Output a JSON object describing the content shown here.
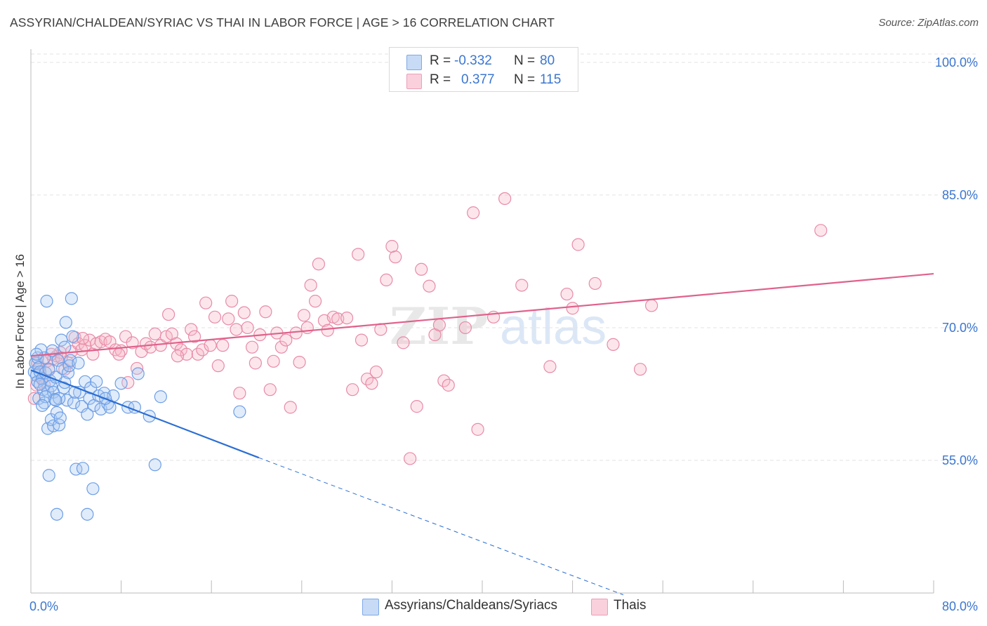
{
  "header": {
    "title": "ASSYRIAN/CHALDEAN/SYRIAC VS THAI IN LABOR FORCE | AGE > 16 CORRELATION CHART",
    "source": "Source: ZipAtlas.com"
  },
  "legend_top": {
    "rows": [
      {
        "r_label": "R =",
        "r_value": "-0.332",
        "n_label": "N =",
        "n_value": "80",
        "color": "#a9c8f0"
      },
      {
        "r_label": "R =",
        "r_value": "0.377",
        "n_label": "N =",
        "n_value": "115",
        "color": "#f5b6c8"
      }
    ]
  },
  "legend_bottom": {
    "items": [
      {
        "label": "Assyrians/Chaldeans/Syriacs",
        "color": "#a9c8f0"
      },
      {
        "label": "Thais",
        "color": "#f5b6c8"
      }
    ]
  },
  "watermark": {
    "part1": "ZIP",
    "part2": "atlas"
  },
  "chart_data": {
    "type": "scatter",
    "title": "ASSYRIAN/CHALDEAN/SYRIAC VS THAI IN LABOR FORCE | AGE > 16 CORRELATION CHART",
    "ylabel": "In Labor Force | Age > 16",
    "xlabel": "",
    "xlim": [
      0,
      80
    ],
    "ylim": [
      40,
      101.5
    ],
    "x_tick_labels": [
      "0.0%",
      "80.0%"
    ],
    "y_ticks": [
      55,
      70,
      85,
      100
    ],
    "y_tick_labels": [
      "55.0%",
      "70.0%",
      "85.0%",
      "100.0%"
    ],
    "grid": true,
    "legend_position": "bottom",
    "series": [
      {
        "name": "Assyrians/Chaldeans/Syriacs",
        "color": "#6d9ee6",
        "fill": "#a9c8f0",
        "r": -0.332,
        "n": 80,
        "trend": {
          "x0": 0,
          "y0": 65.2,
          "x1": 20.2,
          "y1": 55.3,
          "dashed_to_x": 52.5,
          "dashed_to_y": 39.8
        },
        "points": [
          [
            0.3,
            65.0
          ],
          [
            0.4,
            66.0
          ],
          [
            0.5,
            64.6
          ],
          [
            0.6,
            66.6
          ],
          [
            0.6,
            63.9
          ],
          [
            0.7,
            65.5
          ],
          [
            0.7,
            62.0
          ],
          [
            0.8,
            65.0
          ],
          [
            0.9,
            67.5
          ],
          [
            1.0,
            64.2
          ],
          [
            1.1,
            63.0
          ],
          [
            1.2,
            66.6
          ],
          [
            1.2,
            61.5
          ],
          [
            1.3,
            64.9
          ],
          [
            1.4,
            73.0
          ],
          [
            1.5,
            62.8
          ],
          [
            1.5,
            58.6
          ],
          [
            1.6,
            65.3
          ],
          [
            1.6,
            53.3
          ],
          [
            1.7,
            64.0
          ],
          [
            1.8,
            63.4
          ],
          [
            1.8,
            59.6
          ],
          [
            1.9,
            67.4
          ],
          [
            2.0,
            62.7
          ],
          [
            2.0,
            58.9
          ],
          [
            2.1,
            61.9
          ],
          [
            2.2,
            64.4
          ],
          [
            2.3,
            60.4
          ],
          [
            2.3,
            48.9
          ],
          [
            2.4,
            66.3
          ],
          [
            2.5,
            59.0
          ],
          [
            2.6,
            59.8
          ],
          [
            2.7,
            68.6
          ],
          [
            2.8,
            65.4
          ],
          [
            2.9,
            63.2
          ],
          [
            3.0,
            67.8
          ],
          [
            3.1,
            70.6
          ],
          [
            3.2,
            61.8
          ],
          [
            3.3,
            64.9
          ],
          [
            3.4,
            65.7
          ],
          [
            3.5,
            66.3
          ],
          [
            3.6,
            73.3
          ],
          [
            3.7,
            69.0
          ],
          [
            3.8,
            61.5
          ],
          [
            4.0,
            54.0
          ],
          [
            4.3,
            62.7
          ],
          [
            4.5,
            61.1
          ],
          [
            4.6,
            54.1
          ],
          [
            4.8,
            63.9
          ],
          [
            5.0,
            48.9
          ],
          [
            5.2,
            62.0
          ],
          [
            5.3,
            63.2
          ],
          [
            5.5,
            51.8
          ],
          [
            5.6,
            61.2
          ],
          [
            5.8,
            63.9
          ],
          [
            6.0,
            62.3
          ],
          [
            6.2,
            60.8
          ],
          [
            6.5,
            62.6
          ],
          [
            6.8,
            61.4
          ],
          [
            7.0,
            61.0
          ],
          [
            7.3,
            62.3
          ],
          [
            8.0,
            63.7
          ],
          [
            8.6,
            61.0
          ],
          [
            9.2,
            61.0
          ],
          [
            9.5,
            64.8
          ],
          [
            10.5,
            60.0
          ],
          [
            11.0,
            54.5
          ],
          [
            11.5,
            62.2
          ],
          [
            18.5,
            60.5
          ],
          [
            0.5,
            67.0
          ],
          [
            0.8,
            63.6
          ],
          [
            1.3,
            62.2
          ],
          [
            2.5,
            62.0
          ],
          [
            3.9,
            62.7
          ],
          [
            4.2,
            66.0
          ],
          [
            6.6,
            62.0
          ],
          [
            1.0,
            61.2
          ],
          [
            2.2,
            61.8
          ],
          [
            5.0,
            60.2
          ],
          [
            3.0,
            63.8
          ]
        ]
      },
      {
        "name": "Thais",
        "color": "#e88ba8",
        "fill": "#f5b6c8",
        "r": 0.377,
        "n": 115,
        "trend": {
          "x0": 0,
          "y0": 66.8,
          "x1": 80,
          "y1": 76.1
        },
        "points": [
          [
            0.3,
            62.0
          ],
          [
            0.5,
            63.5
          ],
          [
            0.6,
            66.0
          ],
          [
            0.8,
            65.5
          ],
          [
            1.0,
            64.3
          ],
          [
            1.2,
            63.5
          ],
          [
            1.4,
            66.2
          ],
          [
            1.6,
            65.2
          ],
          [
            2.0,
            66.5
          ],
          [
            2.3,
            66.8
          ],
          [
            2.6,
            67.2
          ],
          [
            3.0,
            65.3
          ],
          [
            3.3,
            66.0
          ],
          [
            3.6,
            67.3
          ],
          [
            3.9,
            68.9
          ],
          [
            4.2,
            68.2
          ],
          [
            4.5,
            67.5
          ],
          [
            4.8,
            68.0
          ],
          [
            5.2,
            68.6
          ],
          [
            5.5,
            67.0
          ],
          [
            5.8,
            68.2
          ],
          [
            6.2,
            68.4
          ],
          [
            6.6,
            68.7
          ],
          [
            7.0,
            68.4
          ],
          [
            7.5,
            67.5
          ],
          [
            8.0,
            67.4
          ],
          [
            8.4,
            69.0
          ],
          [
            8.6,
            63.8
          ],
          [
            9.0,
            68.3
          ],
          [
            9.4,
            65.4
          ],
          [
            9.8,
            67.3
          ],
          [
            10.2,
            68.2
          ],
          [
            10.6,
            67.8
          ],
          [
            11.0,
            69.3
          ],
          [
            11.5,
            68.0
          ],
          [
            12.0,
            69.0
          ],
          [
            12.2,
            71.5
          ],
          [
            12.5,
            69.3
          ],
          [
            12.9,
            68.2
          ],
          [
            13.3,
            67.5
          ],
          [
            13.8,
            67.0
          ],
          [
            14.2,
            69.8
          ],
          [
            14.5,
            69.0
          ],
          [
            14.8,
            67.0
          ],
          [
            15.2,
            67.5
          ],
          [
            15.5,
            72.8
          ],
          [
            15.9,
            68.0
          ],
          [
            16.3,
            71.2
          ],
          [
            16.6,
            65.7
          ],
          [
            17.0,
            68.0
          ],
          [
            17.5,
            71.0
          ],
          [
            17.8,
            73.0
          ],
          [
            18.2,
            69.8
          ],
          [
            18.5,
            62.6
          ],
          [
            18.9,
            71.7
          ],
          [
            19.2,
            70.0
          ],
          [
            19.6,
            67.8
          ],
          [
            19.9,
            66.0
          ],
          [
            20.3,
            69.2
          ],
          [
            20.8,
            71.8
          ],
          [
            21.2,
            63.0
          ],
          [
            21.5,
            66.2
          ],
          [
            21.8,
            69.4
          ],
          [
            22.2,
            67.8
          ],
          [
            22.6,
            68.6
          ],
          [
            23.0,
            61.0
          ],
          [
            23.5,
            69.4
          ],
          [
            23.8,
            66.1
          ],
          [
            24.2,
            71.4
          ],
          [
            24.5,
            70.0
          ],
          [
            24.8,
            74.8
          ],
          [
            25.2,
            73.0
          ],
          [
            25.5,
            77.2
          ],
          [
            26.0,
            70.8
          ],
          [
            26.3,
            69.7
          ],
          [
            26.8,
            71.2
          ],
          [
            27.2,
            71.0
          ],
          [
            28.0,
            71.1
          ],
          [
            28.5,
            63.0
          ],
          [
            29.0,
            78.3
          ],
          [
            29.3,
            68.6
          ],
          [
            29.8,
            64.2
          ],
          [
            30.2,
            63.7
          ],
          [
            30.6,
            65.0
          ],
          [
            31.0,
            69.8
          ],
          [
            31.5,
            75.4
          ],
          [
            32.0,
            79.2
          ],
          [
            32.3,
            78.0
          ],
          [
            33.0,
            68.3
          ],
          [
            33.6,
            55.2
          ],
          [
            34.2,
            61.1
          ],
          [
            34.6,
            76.6
          ],
          [
            35.3,
            74.7
          ],
          [
            35.8,
            69.2
          ],
          [
            36.2,
            70.3
          ],
          [
            36.6,
            64.0
          ],
          [
            37.0,
            63.5
          ],
          [
            38.5,
            70.0
          ],
          [
            39.2,
            83.0
          ],
          [
            39.6,
            58.5
          ],
          [
            41.0,
            71.2
          ],
          [
            42.0,
            84.6
          ],
          [
            43.5,
            74.8
          ],
          [
            46.0,
            65.6
          ],
          [
            47.5,
            73.8
          ],
          [
            48.0,
            72.2
          ],
          [
            48.5,
            79.4
          ],
          [
            50.0,
            75.0
          ],
          [
            51.6,
            68.1
          ],
          [
            54.0,
            65.3
          ],
          [
            55.0,
            72.5
          ],
          [
            70.0,
            81.0
          ],
          [
            1.8,
            67.0
          ],
          [
            2.7,
            66.6
          ],
          [
            4.6,
            68.8
          ],
          [
            7.8,
            67.0
          ],
          [
            13.0,
            66.8
          ]
        ]
      }
    ]
  }
}
